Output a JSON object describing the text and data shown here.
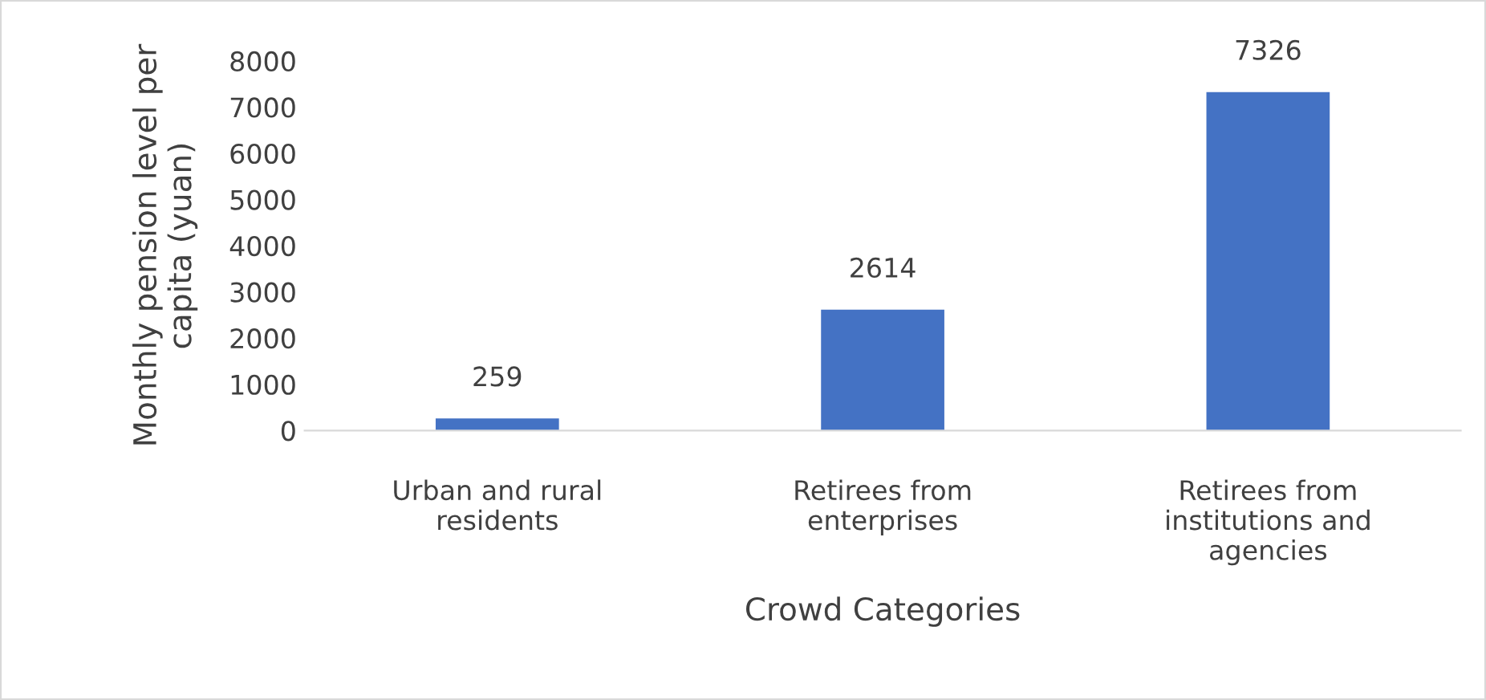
{
  "chart_data": {
    "type": "bar",
    "xlabel": "Crowd Categories",
    "ylabel": "Monthly pension level per\ncapita (yuan)",
    "categories": [
      "Urban and rural\nresidents",
      "Retirees from\nenterprises",
      "Retirees from\ninstitutions and\nagencies"
    ],
    "values": [
      259,
      2614,
      7326
    ],
    "color": "#4472c4",
    "data_labels": true,
    "ylim": [
      0,
      8000
    ],
    "yticks": [
      0,
      1000,
      2000,
      3000,
      4000,
      5000,
      6000,
      7000,
      8000
    ],
    "grid": false,
    "legend": false
  }
}
